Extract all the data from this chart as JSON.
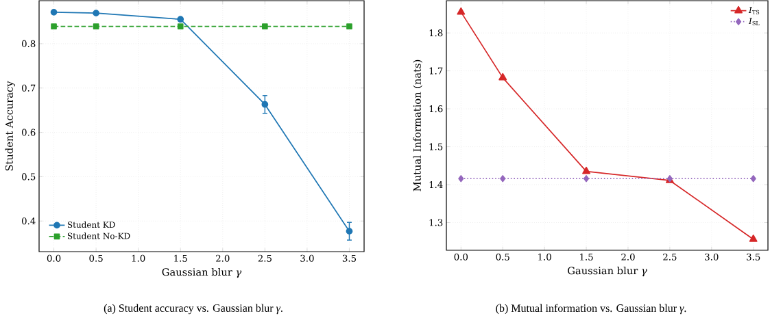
{
  "chart_data": [
    {
      "type": "line",
      "xlabel": "Gaussian blur *γ*",
      "ylabel": "Student Accuracy",
      "annotations": [
        "(a) Student accuracy vs. Gaussian blur *γ*."
      ],
      "x": [
        0,
        0.5,
        1.5,
        2.5,
        3.5
      ],
      "series": [
        {
          "name": "Student KD",
          "color": "#1f77b4",
          "values": [
            0.871,
            0.869,
            0.855,
            0.663,
            0.377
          ],
          "errors": [
            null,
            null,
            null,
            0.02,
            0.02
          ],
          "marker": "circle",
          "line_style": "solid"
        },
        {
          "name": "Student No-KD",
          "color": "#2ca02c",
          "values": [
            0.839,
            0.839,
            0.839,
            0.839,
            0.839
          ],
          "marker": "square",
          "line_style": "dashed"
        }
      ],
      "xlim": [
        -0.175,
        3.675
      ],
      "ylim": [
        0.331,
        0.897
      ],
      "xticks": [
        {
          "value": 0,
          "label": "0.0"
        },
        0.5,
        {
          "value": 1,
          "label": "1.0"
        },
        1.5,
        {
          "value": 2,
          "label": "2.0"
        },
        2.5,
        {
          "value": 3,
          "label": "3.0"
        },
        3.5
      ],
      "yticks": [
        0.4,
        0.5,
        0.6,
        0.7,
        0.8
      ],
      "grid": true,
      "legend": "bottom left"
    },
    {
      "type": "line",
      "xlabel": "Gaussian blur *γ*",
      "ylabel": "Mutual Information (nats)",
      "annotations": [
        "(b) Mutual information vs. Gaussian blur *γ*."
      ],
      "x": [
        0,
        0.5,
        1.5,
        2.5,
        3.5
      ],
      "series": [
        {
          "name": "*I*$_{TS}$",
          "color": "#d62728",
          "values": [
            1.855,
            1.682,
            1.435,
            1.411,
            1.256
          ],
          "marker": "triangle",
          "line_style": "solid"
        },
        {
          "name": "*I*$_{SL}$",
          "color": "#9467bd",
          "values": [
            1.416,
            1.416,
            1.416,
            1.416,
            1.416
          ],
          "marker": "diamond",
          "line_style": "dotted"
        }
      ],
      "xlim": [
        -0.175,
        3.675
      ],
      "ylim": [
        1.227,
        1.885
      ],
      "xticks": [
        {
          "value": 0,
          "label": "0.0"
        },
        0.5,
        {
          "value": 1,
          "label": "1.0"
        },
        1.5,
        {
          "value": 2,
          "label": "2.0"
        },
        2.5,
        {
          "value": 3,
          "label": "3.0"
        },
        3.5
      ],
      "yticks": [
        1.3,
        1.4,
        1.5,
        1.6,
        1.7,
        1.8
      ],
      "grid": true,
      "legend": "top right"
    }
  ]
}
